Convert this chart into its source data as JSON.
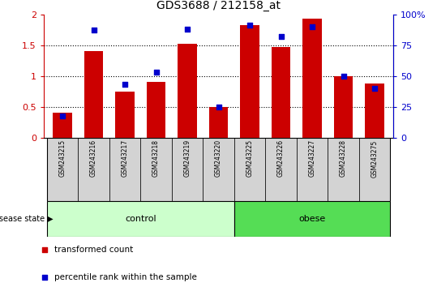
{
  "title": "GDS3688 / 212158_at",
  "samples": [
    "GSM243215",
    "GSM243216",
    "GSM243217",
    "GSM243218",
    "GSM243219",
    "GSM243220",
    "GSM243225",
    "GSM243226",
    "GSM243227",
    "GSM243228",
    "GSM243275"
  ],
  "red_bars": [
    0.4,
    1.4,
    0.75,
    0.9,
    1.52,
    0.5,
    1.82,
    1.47,
    1.93,
    1.0,
    0.88
  ],
  "blue_dots": [
    0.18,
    0.87,
    0.43,
    0.53,
    0.88,
    0.25,
    0.91,
    0.82,
    0.9,
    0.5,
    0.4
  ],
  "left_ylim": [
    0,
    2
  ],
  "right_ylim": [
    0,
    1
  ],
  "left_yticks": [
    0,
    0.5,
    1.0,
    1.5,
    2.0
  ],
  "right_yticks": [
    0,
    0.25,
    0.5,
    0.75,
    1.0
  ],
  "right_yticklabels": [
    "0",
    "25",
    "50",
    "75",
    "100%"
  ],
  "left_yticklabels": [
    "0",
    "0.5",
    "1",
    "1.5",
    "2"
  ],
  "bar_color": "#CC0000",
  "dot_color": "#0000CC",
  "n_control": 6,
  "control_label": "control",
  "obese_label": "obese",
  "disease_state_label": "disease state",
  "legend_red": "transformed count",
  "legend_blue": "percentile rank within the sample",
  "control_color": "#CCFFCC",
  "obese_color": "#55DD55",
  "tick_area_color": "#D3D3D3",
  "bar_width": 0.6
}
